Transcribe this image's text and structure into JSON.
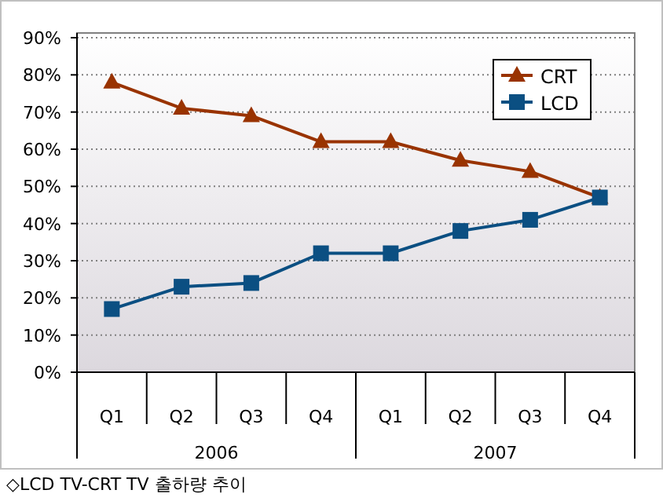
{
  "chart_data": {
    "type": "line",
    "categories": [
      "Q1",
      "Q2",
      "Q3",
      "Q4",
      "Q1",
      "Q2",
      "Q3",
      "Q4"
    ],
    "series": [
      {
        "name": "CRT",
        "color": "#993300",
        "marker": "triangle",
        "values": [
          78,
          71,
          69,
          62,
          62,
          57,
          54,
          47
        ]
      },
      {
        "name": "LCD",
        "color": "#0b4f82",
        "marker": "square",
        "values": [
          17,
          23,
          24,
          32,
          32,
          38,
          41,
          47
        ]
      }
    ],
    "ylim": [
      0,
      90
    ],
    "yticks": [
      {
        "value": 0,
        "label": "0%"
      },
      {
        "value": 10,
        "label": "10%"
      },
      {
        "value": 20,
        "label": "20%"
      },
      {
        "value": 30,
        "label": "30%"
      },
      {
        "value": 40,
        "label": "40%"
      },
      {
        "value": 50,
        "label": "50%"
      },
      {
        "value": 60,
        "label": "60%"
      },
      {
        "value": 70,
        "label": "70%"
      },
      {
        "value": 80,
        "label": "80%"
      },
      {
        "value": 90,
        "label": "90%"
      }
    ],
    "grid": "y",
    "legend": "top right",
    "line_style": "solid",
    "annotations": [
      "2006",
      "2007",
      "◇LCD TV-CRT TV 출하량 추이"
    ]
  }
}
